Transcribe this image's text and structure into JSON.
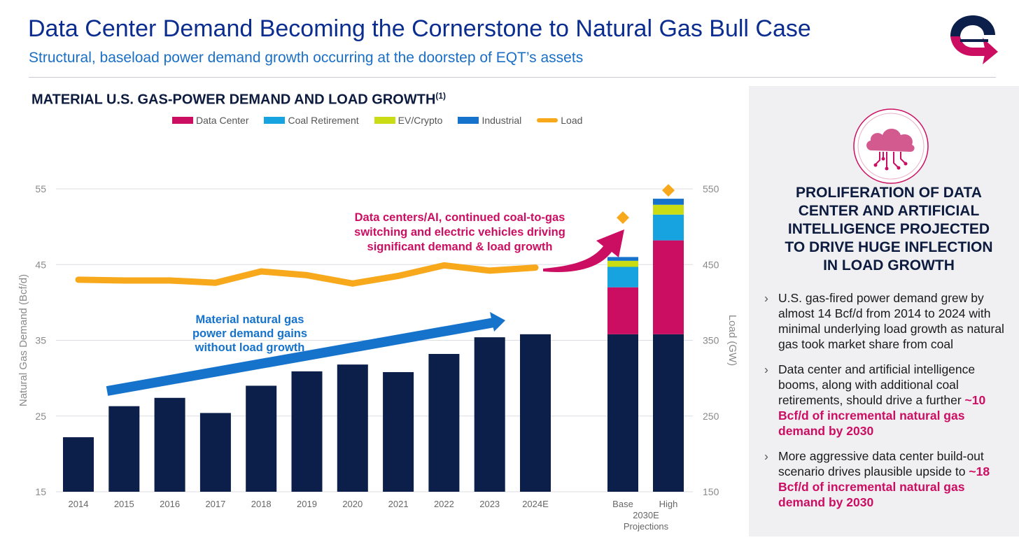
{
  "header": {
    "title": "Data Center Demand Becoming the Cornerstone to Natural Gas Bull Case",
    "subtitle": "Structural, baseload power demand growth occurring at the doorstep of EQT’s assets"
  },
  "colors": {
    "navy": "#0b1f4a",
    "data_center": "#cc0e63",
    "coal_retirement": "#17a2e0",
    "ev_crypto": "#c9dc14",
    "industrial": "#1673cc",
    "load": "#f7a81b",
    "blue_arrow": "#1673cc"
  },
  "chart_data": {
    "type": "bar",
    "title": "MATERIAL U.S. GAS-POWER DEMAND AND LOAD GROWTH",
    "title_note": "(1)",
    "categories": [
      "2014",
      "2015",
      "2016",
      "2017",
      "2018",
      "2019",
      "2020",
      "2021",
      "2022",
      "2023",
      "2024E"
    ],
    "projection_categories": [
      "Base",
      "High"
    ],
    "projection_group_label": "2030E Projections",
    "ylabel": "Natural Gas Demand (Bcf/d)",
    "y2label": "Load (GW)",
    "ylim": [
      15,
      55
    ],
    "y_ticks": [
      "15",
      "25",
      "35",
      "45",
      "55"
    ],
    "y2lim": [
      150,
      550
    ],
    "y2_ticks": [
      "150",
      "250",
      "350",
      "450",
      "550"
    ],
    "grid": true,
    "legend": [
      "Data Center",
      "Coal Retirement",
      "EV/Crypto",
      "Industrial",
      "Load"
    ],
    "legend_position": "top",
    "demand_values": [
      22.2,
      26.3,
      27.4,
      25.4,
      29.0,
      30.9,
      31.8,
      30.8,
      33.2,
      35.4,
      35.8
    ],
    "load_values": [
      430,
      429,
      429,
      426,
      441,
      436,
      425,
      435,
      449,
      442,
      446
    ],
    "projections": [
      {
        "name": "Base",
        "base": 35.8,
        "data_center": 6.2,
        "coal_retirement": 2.7,
        "ev_crypto": 0.8,
        "industrial": 0.5,
        "load": 512
      },
      {
        "name": "High",
        "base": 35.8,
        "data_center": 12.4,
        "coal_retirement": 3.4,
        "ev_crypto": 1.3,
        "industrial": 0.8,
        "load": 548
      }
    ],
    "annotations": {
      "blue": [
        "Material natural gas",
        "power demand gains",
        "without load growth"
      ],
      "magenta": [
        "Data centers/AI, continued coal-to-gas",
        "switching and electric vehicles driving",
        "significant demand & load growth"
      ]
    }
  },
  "panel": {
    "icon": "cloud-circuit-icon",
    "heading": [
      "PROLIFERATION OF DATA",
      "CENTER AND ARTIFICIAL",
      "INTELLIGENCE PROJECTED",
      "TO DRIVE HUGE INFLECTION",
      "IN LOAD GROWTH"
    ],
    "bullets": [
      {
        "text": "U.S. gas-fired power demand grew by almost 14 Bcf/d from 2014 to 2024 with minimal underlying load growth as natural gas took market share from coal",
        "highlight": ""
      },
      {
        "text": "Data center and artificial intelligence booms, along with additional coal retirements, should drive a further ",
        "highlight": "~10 Bcf/d of incremental natural gas demand by 2030"
      },
      {
        "text": "More aggressive data center build-out scenario drives plausible upside to ",
        "highlight": "~18 Bcf/d of incremental natural gas demand by 2030"
      }
    ]
  }
}
